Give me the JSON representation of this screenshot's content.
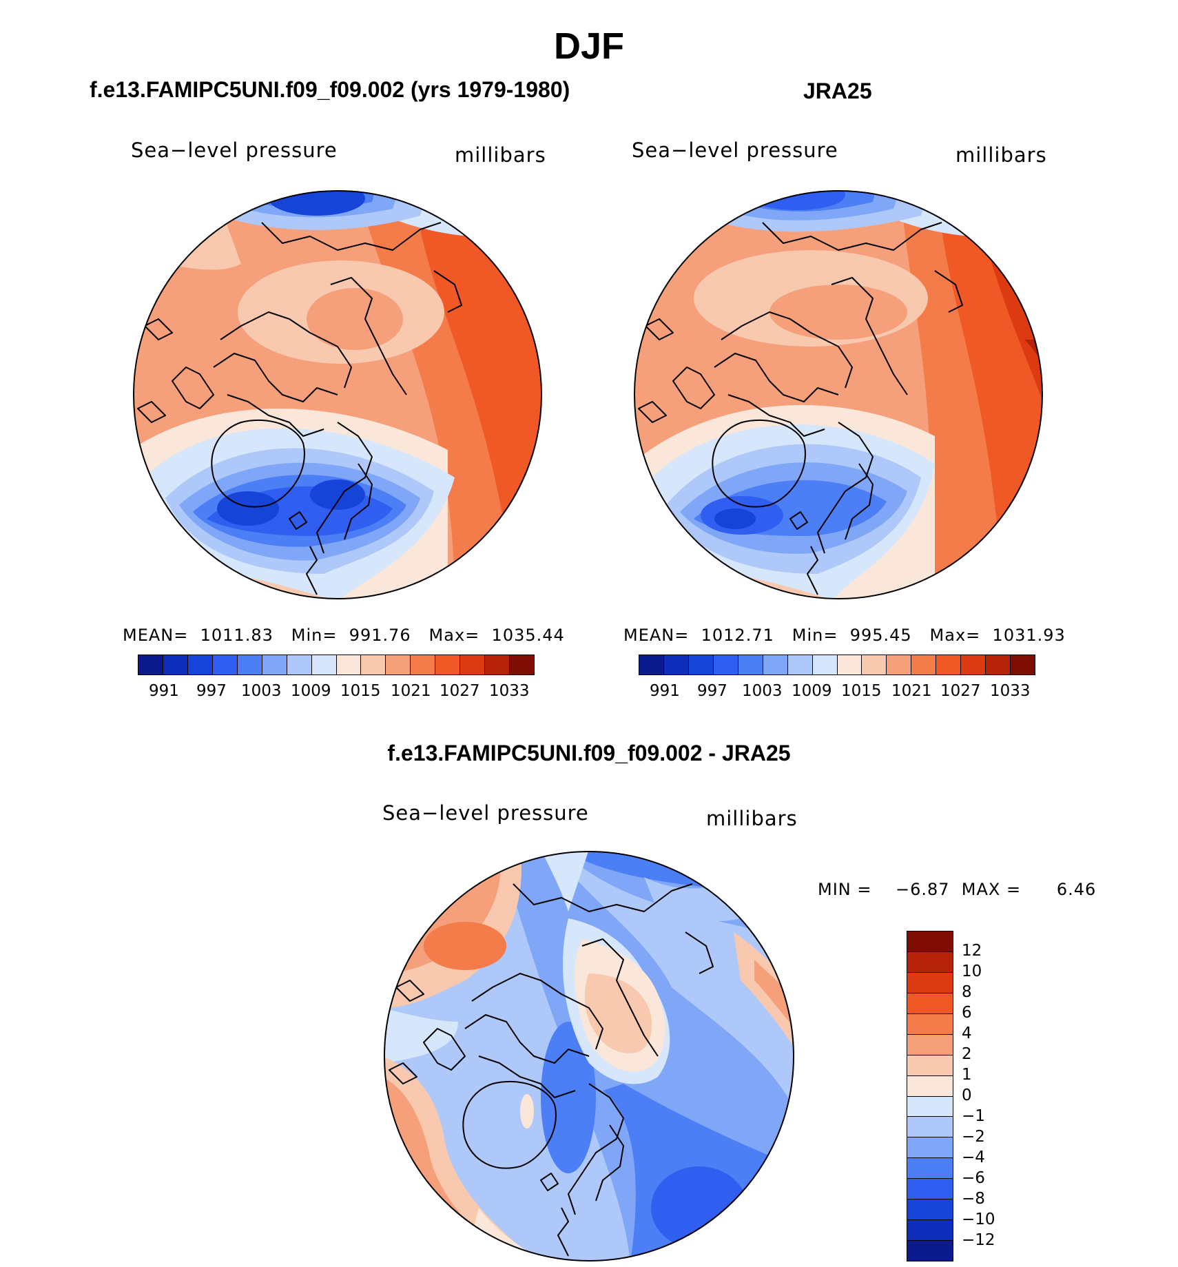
{
  "title": "DJF",
  "panels": [
    {
      "heading": "f.e13.FAMIPC5UNI.f09_f09.002 (yrs 1979-1980)",
      "variable": "Sea−level pressure",
      "units": "millibars",
      "stats": "MEAN=  1011.83   Min=  991.76   Max=  1035.44",
      "colorbar_ticks": [
        "991",
        "997",
        "1003",
        "1009",
        "1015",
        "1021",
        "1027",
        "1033"
      ]
    },
    {
      "heading": "JRA25",
      "variable": "Sea−level pressure",
      "units": "millibars",
      "stats": "MEAN=  1012.71   Min=  995.45   Max=  1031.93",
      "colorbar_ticks": [
        "991",
        "997",
        "1003",
        "1009",
        "1015",
        "1021",
        "1027",
        "1033"
      ]
    },
    {
      "heading": "f.e13.FAMIPC5UNI.f09_f09.002 - JRA25",
      "variable": "Sea−level pressure",
      "units": "millibars",
      "stats": "MIN =    −6.87  MAX =      6.46",
      "colorbar_ticks": [
        "12",
        "10",
        "8",
        "6",
        "4",
        "2",
        "1",
        "0",
        "−1",
        "−2",
        "−4",
        "−6",
        "−8",
        "−10",
        "−12"
      ]
    }
  ],
  "colors": {
    "abs_scale": [
      "#0b1a8c",
      "#0e2db8",
      "#1744d8",
      "#2f5ef0",
      "#4c7ef5",
      "#7fa6f7",
      "#aec8f9",
      "#d6e6fb",
      "#fbe6da",
      "#f8c9af",
      "#f5a07a",
      "#f47b4a",
      "#f05826",
      "#dc3b12",
      "#b52208",
      "#7e0c02"
    ],
    "diff_scale": [
      "#7e0c02",
      "#b52208",
      "#dc3b12",
      "#f05826",
      "#f47b4a",
      "#f5a07a",
      "#f8c9af",
      "#fbe6da",
      "#d6e6fb",
      "#aec8f9",
      "#7fa6f7",
      "#4c7ef5",
      "#2f5ef0",
      "#1744d8",
      "#0e2db8",
      "#0b1a8c"
    ]
  }
}
